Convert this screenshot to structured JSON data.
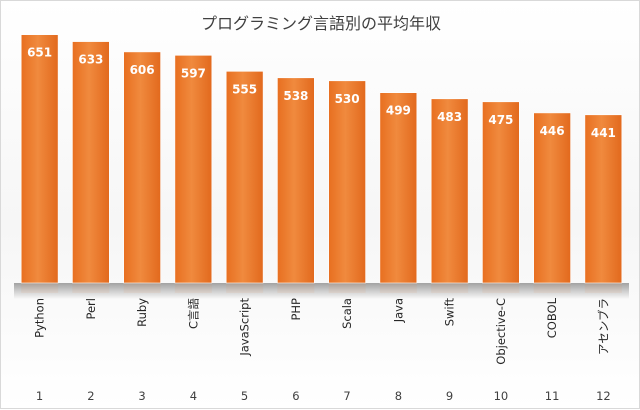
{
  "chart_data": {
    "type": "bar",
    "title": "プログラミング言語別の平均年収",
    "categories": [
      "Python",
      "Perl",
      "Ruby",
      "C言語",
      "JavaScript",
      "PHP",
      "Scala",
      "Java",
      "Swift",
      "Objective-C",
      "COBOL",
      "アセンブラ"
    ],
    "index_labels": [
      "1",
      "2",
      "3",
      "4",
      "5",
      "6",
      "7",
      "8",
      "9",
      "10",
      "11",
      "12"
    ],
    "values": [
      651,
      633,
      606,
      597,
      555,
      538,
      530,
      499,
      483,
      475,
      446,
      441
    ],
    "ylim": [
      0,
      700
    ],
    "grid": false,
    "legend": "none",
    "bar_color": "#ed7d31",
    "bar_color_light": "#f4a261",
    "value_label_color": "#ffffff"
  }
}
